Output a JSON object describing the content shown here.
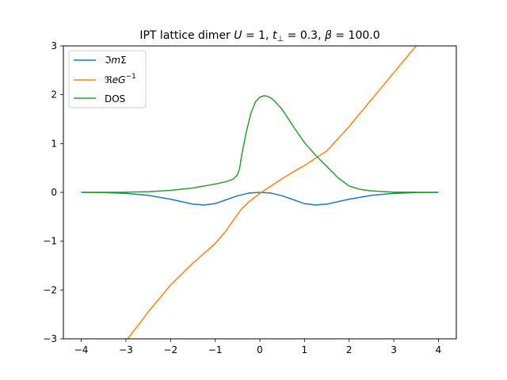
{
  "chart_data": {
    "type": "line",
    "title": "IPT lattice dimer U = 1, t⊥ = 0.3, β = 100.0",
    "title_parts": {
      "prefix": "IPT lattice dimer ",
      "U": "U",
      "U_val": " = 1, ",
      "t": "t",
      "perp": "⊥",
      "t_val": " = 0.3, ",
      "beta": "β",
      "beta_val": " = 100.0"
    },
    "xlabel": "",
    "ylabel": "",
    "xlim": [
      -4.4,
      4.4
    ],
    "ylim": [
      -3,
      3
    ],
    "xticks": [
      -4,
      -3,
      -2,
      -1,
      0,
      1,
      2,
      3,
      4
    ],
    "yticks": [
      -3,
      -2,
      -1,
      0,
      1,
      2,
      3
    ],
    "xtick_labels": [
      "−4",
      "−3",
      "−2",
      "−1",
      "0",
      "1",
      "2",
      "3",
      "4"
    ],
    "ytick_labels": [
      "−3",
      "−2",
      "−1",
      "0",
      "1",
      "2",
      "3"
    ],
    "grid": false,
    "legend_position": "upper-left",
    "series": [
      {
        "name": "ℑmΣ",
        "legend_parts": [
          "ℑ",
          "m",
          "Σ"
        ],
        "color": "#1f77b4",
        "x": [
          -4,
          -3.5,
          -3,
          -2.5,
          -2,
          -1.75,
          -1.5,
          -1.25,
          -1,
          -0.75,
          -0.5,
          -0.25,
          0,
          0.25,
          0.5,
          0.75,
          1,
          1.25,
          1.5,
          1.75,
          2,
          2.5,
          3,
          3.5,
          4
        ],
        "y": [
          0,
          -0.005,
          -0.02,
          -0.06,
          -0.14,
          -0.19,
          -0.24,
          -0.26,
          -0.23,
          -0.15,
          -0.07,
          -0.015,
          0,
          -0.015,
          -0.07,
          -0.15,
          -0.23,
          -0.26,
          -0.24,
          -0.19,
          -0.14,
          -0.06,
          -0.02,
          -0.005,
          0
        ]
      },
      {
        "name": "ℜeG⁻¹",
        "legend_parts": [
          "ℜ",
          "eG",
          "−1"
        ],
        "color": "#ff7f0e",
        "x": [
          -3,
          -2.5,
          -2,
          -1.5,
          -1,
          -0.75,
          -0.6,
          -0.5,
          -0.4,
          -0.25,
          0,
          0.25,
          0.5,
          0.75,
          1,
          1.25,
          1.5,
          2,
          2.5,
          3,
          3.5
        ],
        "y": [
          -3.05,
          -2.45,
          -1.9,
          -1.45,
          -1.05,
          -0.78,
          -0.58,
          -0.45,
          -0.33,
          -0.2,
          -0.02,
          0.13,
          0.28,
          0.42,
          0.55,
          0.7,
          0.85,
          1.35,
          1.9,
          2.45,
          3.0
        ]
      },
      {
        "name": "DOS",
        "legend_parts": [
          "DOS"
        ],
        "color": "#2ca02c",
        "x": [
          -4,
          -3,
          -2.5,
          -2,
          -1.5,
          -1,
          -0.75,
          -0.6,
          -0.5,
          -0.45,
          -0.4,
          -0.3,
          -0.2,
          -0.1,
          0,
          0.1,
          0.2,
          0.3,
          0.5,
          0.75,
          1,
          1.25,
          1.5,
          1.75,
          2,
          2.25,
          2.5,
          3,
          4
        ],
        "y": [
          0,
          0.003,
          0.015,
          0.04,
          0.09,
          0.17,
          0.22,
          0.27,
          0.36,
          0.5,
          0.8,
          1.25,
          1.62,
          1.85,
          1.95,
          1.98,
          1.96,
          1.9,
          1.7,
          1.35,
          1.02,
          0.76,
          0.53,
          0.3,
          0.13,
          0.06,
          0.03,
          0.005,
          0
        ]
      }
    ]
  }
}
